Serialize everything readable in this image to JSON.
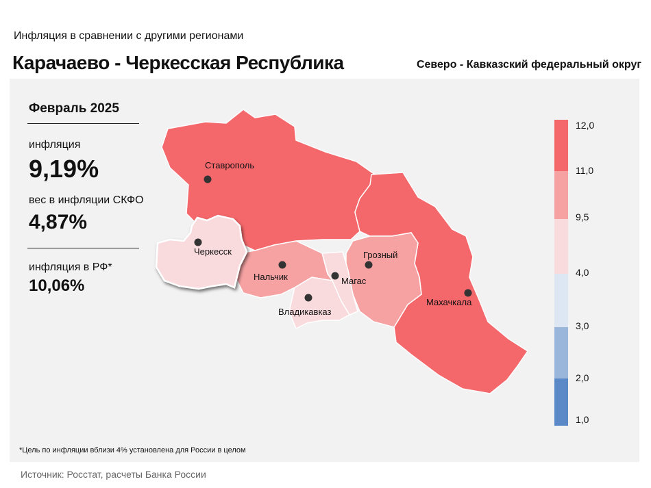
{
  "header": {
    "subtitle": "Инфляция  в сравнении  с другими  регионами",
    "title": "Карачаево - Черкесская Республика",
    "district": "Северо - Кавказский федеральный округ"
  },
  "stats": {
    "period": "Февраль 2025",
    "inflation_label": "инфляция",
    "inflation_value": "9,19%",
    "weight_label": "вес в инфляции  СКФО",
    "weight_value": "4,87%",
    "rf_label": "инфляция  в РФ*",
    "rf_value": "10,06%"
  },
  "map": {
    "highlighted_region": "Карачаево - Черкесская Республика",
    "cities": [
      "Ставрополь",
      "Черкесск",
      "Нальчик",
      "Магас",
      "Грозный",
      "Владикавказ",
      "Махачкала"
    ],
    "colors": {
      "band_11_12": "#f4676a",
      "band_9_5_11": "#f6a2a3",
      "band_4_9_5": "#f9dbde",
      "band_3_4": "#dde6f3",
      "band_2_3": "#9bb6db",
      "band_1_2": "#5b88c6"
    }
  },
  "legend": {
    "ticks": [
      "12,0",
      "11,0",
      "9,5",
      "4,0",
      "3,0",
      "2,0",
      "1,0"
    ]
  },
  "footnote": "*Цель по инфляции вблизи 4% установлена для России в целом",
  "source": "Источник: Росстат, расчеты Банка России"
}
